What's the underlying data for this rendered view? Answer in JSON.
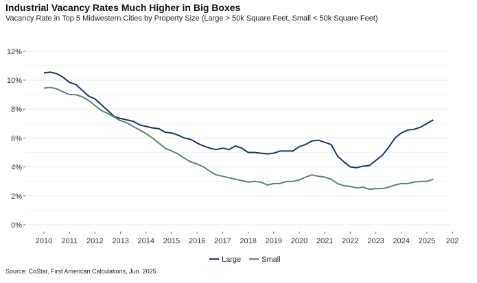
{
  "chart_data": {
    "type": "line",
    "title": "Industrial Vacancy Rates Much Higher in Big Boxes",
    "subtitle": "Vacancy Rate in Top 5 Midwestern Cities by Property Size (Large > 50k Square Feet, Small < 50k Square Feet)",
    "source": "Source: CoStar, First American Calculations, Jun. 2025",
    "xlabel": "",
    "ylabel": "",
    "xlim": [
      2009.5,
      2026
    ],
    "ylim": [
      0,
      12
    ],
    "x_ticks": [
      "2010",
      "2011",
      "2012",
      "2013",
      "2014",
      "2015",
      "2016",
      "2017",
      "2018",
      "2019",
      "2020",
      "2021",
      "2022",
      "2023",
      "2024",
      "2025",
      "202"
    ],
    "y_ticks": [
      "0%",
      "2%",
      "4%",
      "6%",
      "8%",
      "10%",
      "12%"
    ],
    "grid": "horizontal",
    "legend_position": "bottom",
    "x": [
      2010,
      2010.25,
      2010.5,
      2010.75,
      2011,
      2011.25,
      2011.5,
      2011.75,
      2012,
      2012.25,
      2012.5,
      2012.75,
      2013,
      2013.25,
      2013.5,
      2013.75,
      2014,
      2014.25,
      2014.5,
      2014.75,
      2015,
      2015.25,
      2015.5,
      2015.75,
      2016,
      2016.25,
      2016.5,
      2016.75,
      2017,
      2017.25,
      2017.5,
      2017.75,
      2018,
      2018.25,
      2018.5,
      2018.75,
      2019,
      2019.25,
      2019.5,
      2019.75,
      2020,
      2020.25,
      2020.5,
      2020.75,
      2021,
      2021.25,
      2021.5,
      2021.75,
      2022,
      2022.25,
      2022.5,
      2022.75,
      2023,
      2023.25,
      2023.5,
      2023.75,
      2024,
      2024.25,
      2024.5,
      2024.75,
      2025,
      2025.25
    ],
    "series": [
      {
        "name": "Large",
        "color": "#17365a",
        "values": [
          10.5,
          10.55,
          10.45,
          10.2,
          9.85,
          9.7,
          9.3,
          8.9,
          8.7,
          8.3,
          7.9,
          7.5,
          7.35,
          7.25,
          7.15,
          6.9,
          6.8,
          6.7,
          6.65,
          6.4,
          6.35,
          6.2,
          6.0,
          5.9,
          5.65,
          5.45,
          5.3,
          5.2,
          5.3,
          5.2,
          5.45,
          5.3,
          5.0,
          5.0,
          4.95,
          4.9,
          4.95,
          5.1,
          5.1,
          5.1,
          5.4,
          5.55,
          5.8,
          5.85,
          5.7,
          5.55,
          4.75,
          4.35,
          4.0,
          3.95,
          4.05,
          4.1,
          4.45,
          4.8,
          5.35,
          6.0,
          6.35,
          6.55,
          6.6,
          6.75,
          7.0,
          7.25
        ]
      },
      {
        "name": "Small",
        "color": "#5b8270",
        "values": [
          9.45,
          9.5,
          9.4,
          9.2,
          9.0,
          9.0,
          8.85,
          8.6,
          8.25,
          7.9,
          7.7,
          7.45,
          7.2,
          7.05,
          6.8,
          6.55,
          6.3,
          6.0,
          5.65,
          5.3,
          5.1,
          4.9,
          4.6,
          4.35,
          4.2,
          4.0,
          3.7,
          3.45,
          3.35,
          3.25,
          3.15,
          3.05,
          2.95,
          3.0,
          2.95,
          2.75,
          2.85,
          2.85,
          3.0,
          3.0,
          3.1,
          3.3,
          3.45,
          3.35,
          3.3,
          3.15,
          2.85,
          2.7,
          2.65,
          2.55,
          2.6,
          2.45,
          2.5,
          2.5,
          2.6,
          2.75,
          2.85,
          2.85,
          2.95,
          3.0,
          3.0,
          3.15
        ]
      }
    ]
  }
}
